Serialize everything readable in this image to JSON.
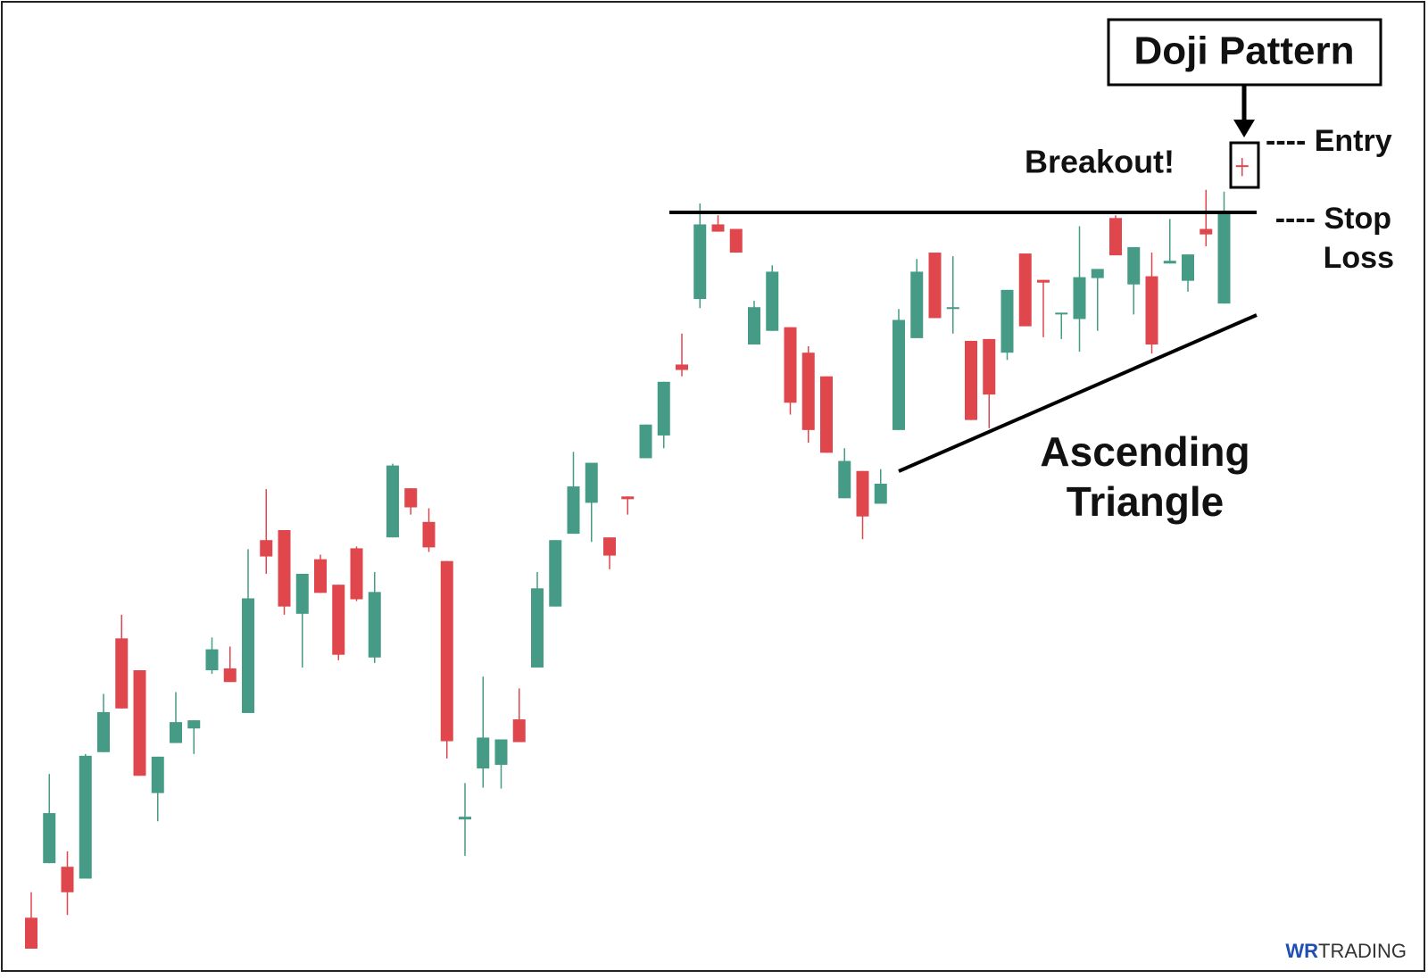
{
  "chart_data": {
    "type": "candlestick",
    "up_color": "#459b86",
    "down_color": "#e0474c",
    "open": [
      9.2,
      15.2,
      14.8,
      13.5,
      27.4,
      39.9,
      36.4,
      22.9,
      28.4,
      30.0,
      36.4,
      36.6,
      31.7,
      50.7,
      51.8,
      42.6,
      48.6,
      45.8,
      49.8,
      37.8,
      51.0,
      56.4,
      52.7,
      48.4,
      20.0,
      25.6,
      26.0,
      31.0,
      36.7,
      43.4,
      51.4,
      54.8,
      51.0,
      55.5,
      59.7,
      62.2,
      70.0,
      77.2,
      85.4,
      84.9,
      72.2,
      73.7,
      74.1,
      71.3,
      68.7,
      55.3,
      58.3,
      54.7,
      62.8,
      72.9,
      82.3,
      76.1,
      72.6,
      72.8,
      71.3,
      82.2,
      79.3,
      75.5,
      75.0,
      79.5,
      86.1,
      78.8,
      79.7,
      81.1,
      79.2,
      84.9,
      76.7,
      91.9
    ],
    "high": [
      12.0,
      25.0,
      16.5,
      27.2,
      33.8,
      42.5,
      36.4,
      26.9,
      34.0,
      30.9,
      40.0,
      39.0,
      49.7,
      56.3,
      51.8,
      47.0,
      49.1,
      45.8,
      50.0,
      47.2,
      59.1,
      56.4,
      54.2,
      48.4,
      24.0,
      35.7,
      28.8,
      34.4,
      47.2,
      50.7,
      60.4,
      59.2,
      51.0,
      55.5,
      63.4,
      68.1,
      73.4,
      87.7,
      86.4,
      84.9,
      77.0,
      80.9,
      74.1,
      72.0,
      68.7,
      60.8,
      58.3,
      58.5,
      76.1,
      81.6,
      82.3,
      81.9,
      72.6,
      72.8,
      78.2,
      82.2,
      79.3,
      75.7,
      85.2,
      80.5,
      86.4,
      82.9,
      82.3,
      86.0,
      82.1,
      89.2,
      89.0,
      92.7
    ],
    "low": [
      5.8,
      15.2,
      9.5,
      13.5,
      27.4,
      32.2,
      24.8,
      19.8,
      28.4,
      27.2,
      36.0,
      35.1,
      31.7,
      47.0,
      42.5,
      36.7,
      44.9,
      37.5,
      44.0,
      37.2,
      51.0,
      53.5,
      49.4,
      26.7,
      16.0,
      23.5,
      23.4,
      28.5,
      36.7,
      43.4,
      51.4,
      50.5,
      47.5,
      53.5,
      59.7,
      60.8,
      68.7,
      76.2,
      84.6,
      82.3,
      72.2,
      73.7,
      64.5,
      61.4,
      60.3,
      55.3,
      50.8,
      54.7,
      62.8,
      72.9,
      75.1,
      73.4,
      63.9,
      63.0,
      70.5,
      74.2,
      73.0,
      72.8,
      71.4,
      73.7,
      82.0,
      75.5,
      71.2,
      81.1,
      78.0,
      83.0,
      76.7,
      90.7
    ],
    "close": [
      5.8,
      20.7,
      12.0,
      27.0,
      31.8,
      32.2,
      24.8,
      26.9,
      30.7,
      30.9,
      38.7,
      35.1,
      44.3,
      48.9,
      43.4,
      47.0,
      44.9,
      38.1,
      44.2,
      45.0,
      58.9,
      54.3,
      49.9,
      28.6,
      20.3,
      29.0,
      28.8,
      28.5,
      45.4,
      50.7,
      56.6,
      59.2,
      49.0,
      55.2,
      63.4,
      68.1,
      69.4,
      85.4,
      84.6,
      82.3,
      76.3,
      80.2,
      65.8,
      62.8,
      60.3,
      59.4,
      53.3,
      56.9,
      74.9,
      80.2,
      75.1,
      76.3,
      63.9,
      66.7,
      78.2,
      74.2,
      79.0,
      75.7,
      79.6,
      80.5,
      82.0,
      82.9,
      72.2,
      81.4,
      82.1,
      84.3,
      86.8,
      91.8
    ],
    "annotations": {
      "pattern": "Doji Pattern",
      "entry": "---- Entry",
      "breakout": "Breakout!",
      "stop": "---- Stop",
      "loss": "Loss",
      "triangle_1": "Ascending",
      "triangle_2": "Triangle"
    },
    "logo": {
      "mark": "WR",
      "text": "TRADING"
    }
  }
}
